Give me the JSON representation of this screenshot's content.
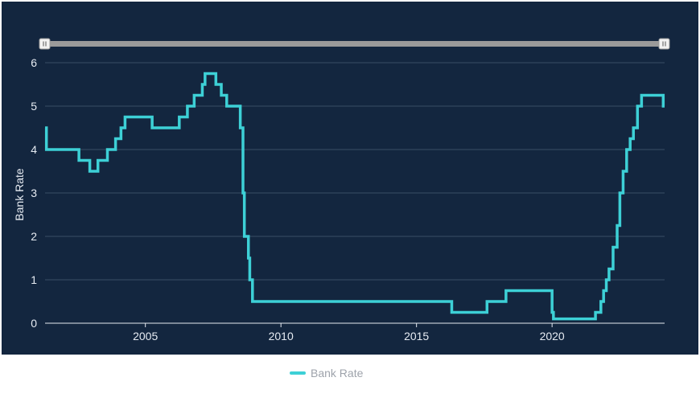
{
  "colors": {
    "background": "#13263f",
    "line": "#3dd0d6",
    "grid": "#3a4e66",
    "text": "#e6ebf2",
    "navigator": "#9a9a9a"
  },
  "chart_data": {
    "type": "line",
    "step": true,
    "ylabel": "Bank Rate",
    "xlabel": "",
    "xlim": [
      2001.3,
      2024.15
    ],
    "ylim": [
      0,
      6
    ],
    "x_ticks": [
      2005,
      2010,
      2015,
      2020
    ],
    "y_ticks": [
      0,
      1,
      2,
      3,
      4,
      5,
      6
    ],
    "grid": true,
    "legend_position": "bottom-center",
    "series": [
      {
        "name": "Bank Rate",
        "points": [
          [
            2001.3,
            4.5
          ],
          [
            2001.35,
            4.0
          ],
          [
            2002.55,
            3.75
          ],
          [
            2002.95,
            3.5
          ],
          [
            2003.25,
            3.75
          ],
          [
            2003.6,
            4.0
          ],
          [
            2003.9,
            4.25
          ],
          [
            2004.1,
            4.5
          ],
          [
            2004.25,
            4.75
          ],
          [
            2005.25,
            4.5
          ],
          [
            2006.25,
            4.75
          ],
          [
            2006.55,
            5.0
          ],
          [
            2006.8,
            5.25
          ],
          [
            2007.1,
            5.5
          ],
          [
            2007.2,
            5.75
          ],
          [
            2007.6,
            5.5
          ],
          [
            2007.8,
            5.25
          ],
          [
            2008.0,
            5.0
          ],
          [
            2008.5,
            4.5
          ],
          [
            2008.6,
            3.0
          ],
          [
            2008.65,
            2.0
          ],
          [
            2008.8,
            1.5
          ],
          [
            2008.85,
            1.0
          ],
          [
            2008.95,
            0.5
          ],
          [
            2016.3,
            0.25
          ],
          [
            2017.6,
            0.5
          ],
          [
            2018.3,
            0.75
          ],
          [
            2020.0,
            0.25
          ],
          [
            2020.05,
            0.1
          ],
          [
            2021.6,
            0.25
          ],
          [
            2021.8,
            0.5
          ],
          [
            2021.9,
            0.75
          ],
          [
            2022.0,
            1.0
          ],
          [
            2022.1,
            1.25
          ],
          [
            2022.25,
            1.75
          ],
          [
            2022.4,
            2.25
          ],
          [
            2022.5,
            3.0
          ],
          [
            2022.62,
            3.5
          ],
          [
            2022.75,
            4.0
          ],
          [
            2022.88,
            4.25
          ],
          [
            2023.0,
            4.5
          ],
          [
            2023.15,
            5.0
          ],
          [
            2023.3,
            5.25
          ],
          [
            2024.1,
            5.0
          ]
        ]
      }
    ]
  }
}
